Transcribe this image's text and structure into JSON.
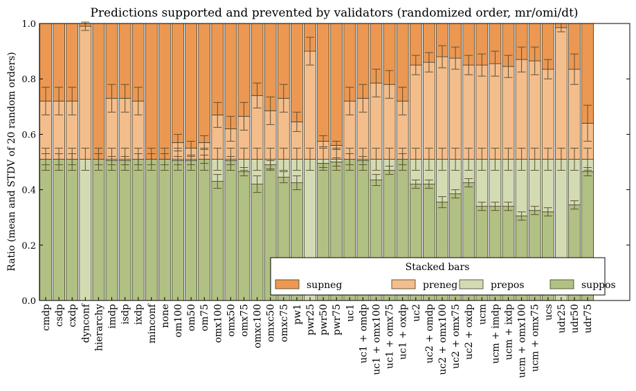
{
  "chart_data": {
    "type": "bar",
    "stacked": true,
    "title": "Predictions supported and prevented by validators (randomized order, mr/omi/dt)",
    "xlabel": "",
    "ylabel": "Ratio (mean and STDV of 20 random orders)",
    "ylim": [
      0.0,
      1.0
    ],
    "yticks": [
      "0.0",
      "0.2",
      "0.4",
      "0.6",
      "0.8",
      "1.0"
    ],
    "grid": false,
    "legend": {
      "title": "Stacked bars",
      "placement": "lower-right",
      "entries": [
        "supneg",
        "preneg",
        "prepos",
        "suppos"
      ]
    },
    "colors": {
      "supneg": "#ec9852",
      "preneg": "#f4bd8c",
      "prepos": "#d3dbb3",
      "suppos": "#b1c083",
      "errorbar": "#5e5030"
    },
    "categories": [
      "cmdp",
      "csdp",
      "cxdp",
      "dynconf",
      "hierarchy",
      "imdp",
      "isdp",
      "ixdp",
      "minconf",
      "none",
      "om100",
      "om50",
      "om75",
      "omx100",
      "omx50",
      "omx75",
      "omxc100",
      "omxc50",
      "omxc75",
      "pw1",
      "pwr25",
      "pwr50",
      "pwr75",
      "uc1",
      "uc1 + omdp",
      "uc1 + omx100",
      "uc1 + omx75",
      "uc1 + oxdp",
      "uc2",
      "uc2 + omdp",
      "uc2 + omx100",
      "uc2 + omx75",
      "uc2 + oxdp",
      "ucm",
      "ucm + imdp",
      "ucm + ixdp",
      "ucm + omx100",
      "ucm + omx75",
      "ucs",
      "udr25",
      "udr50",
      "udr75"
    ],
    "series": [
      {
        "name": "suppos",
        "values": [
          0.51,
          0.51,
          0.51,
          0,
          0.51,
          0.505,
          0.505,
          0.51,
          0.51,
          0.51,
          0.505,
          0.505,
          0.51,
          0.43,
          0.505,
          0.465,
          0.42,
          0.49,
          0.445,
          0.425,
          0,
          0.495,
          0.5,
          0.51,
          0.505,
          0.435,
          0.47,
          0.51,
          0.42,
          0.42,
          0.355,
          0.385,
          0.425,
          0.34,
          0.34,
          0.34,
          0.305,
          0.325,
          0.32,
          0,
          0.345,
          0.465
        ]
      },
      {
        "name": "prepos",
        "values": [
          0,
          0,
          0,
          0.51,
          0,
          0.005,
          0.005,
          0,
          0,
          0,
          0.005,
          0.005,
          0,
          0.08,
          0.005,
          0.045,
          0.09,
          0.02,
          0.065,
          0.085,
          0.51,
          0.015,
          0.01,
          0,
          0.005,
          0.075,
          0.04,
          0,
          0.09,
          0.09,
          0.155,
          0.125,
          0.085,
          0.17,
          0.17,
          0.17,
          0.205,
          0.185,
          0.19,
          0.51,
          0.165,
          0.045
        ]
      },
      {
        "name": "preneg",
        "values": [
          0.21,
          0.21,
          0.21,
          0.48,
          0,
          0.22,
          0.22,
          0.21,
          0,
          0,
          0.06,
          0.04,
          0.06,
          0.16,
          0.11,
          0.155,
          0.23,
          0.175,
          0.22,
          0.135,
          0.39,
          0.065,
          0.05,
          0.21,
          0.22,
          0.275,
          0.27,
          0.21,
          0.34,
          0.35,
          0.37,
          0.365,
          0.34,
          0.34,
          0.345,
          0.335,
          0.36,
          0.355,
          0.325,
          0.475,
          0.325,
          0.13
        ]
      },
      {
        "name": "supneg",
        "values": [
          0.28,
          0.28,
          0.28,
          0.01,
          0.49,
          0.27,
          0.27,
          0.28,
          0.49,
          0.49,
          0.43,
          0.45,
          0.43,
          0.33,
          0.38,
          0.335,
          0.26,
          0.315,
          0.27,
          0.355,
          0.1,
          0.425,
          0.44,
          0.28,
          0.27,
          0.215,
          0.22,
          0.28,
          0.15,
          0.14,
          0.12,
          0.125,
          0.15,
          0.15,
          0.145,
          0.155,
          0.13,
          0.135,
          0.165,
          0.015,
          0.165,
          0.36
        ]
      }
    ],
    "error_bars": {
      "suppos_top": {
        "mean": [
          0.51,
          0.51,
          0.51,
          0,
          0.51,
          0.505,
          0.505,
          0.51,
          0.51,
          0.51,
          0.505,
          0.505,
          0.51,
          0.43,
          0.505,
          0.465,
          0.42,
          0.49,
          0.445,
          0.425,
          0,
          0.495,
          0.5,
          0.51,
          0.505,
          0.435,
          0.47,
          0.51,
          0.42,
          0.42,
          0.355,
          0.385,
          0.425,
          0.34,
          0.34,
          0.34,
          0.305,
          0.325,
          0.32,
          0,
          0.345,
          0.465
        ],
        "std": [
          0.02,
          0.02,
          0.02,
          0,
          0.02,
          0.015,
          0.015,
          0.02,
          0.02,
          0.02,
          0.015,
          0.015,
          0.015,
          0.025,
          0.015,
          0.015,
          0.03,
          0.015,
          0.02,
          0.025,
          0,
          0.015,
          0.015,
          0.02,
          0.015,
          0.02,
          0.015,
          0.02,
          0.015,
          0.015,
          0.02,
          0.015,
          0.015,
          0.015,
          0.015,
          0.015,
          0.015,
          0.015,
          0.015,
          0,
          0.015,
          0.015
        ]
      },
      "positive_top": {
        "mean": [
          0.51,
          0.51,
          0.51,
          0.51,
          0.51,
          0.51,
          0.51,
          0.51,
          0.51,
          0.51,
          0.51,
          0.51,
          0.51,
          0.51,
          0.51,
          0.51,
          0.51,
          0.51,
          0.51,
          0.51,
          0.51,
          0.51,
          0.51,
          0.51,
          0.51,
          0.51,
          0.51,
          0.51,
          0.51,
          0.51,
          0.51,
          0.51,
          0.51,
          0.51,
          0.51,
          0.51,
          0.51,
          0.51,
          0.51,
          0.51,
          0.51,
          0.51
        ],
        "std": [
          0.04,
          0.04,
          0.04,
          0.04,
          0.04,
          0.04,
          0.04,
          0.04,
          0.04,
          0.04,
          0.04,
          0.04,
          0.04,
          0.04,
          0.04,
          0.04,
          0.04,
          0.04,
          0.04,
          0.04,
          0.04,
          0.04,
          0.04,
          0.04,
          0.04,
          0.04,
          0.04,
          0.04,
          0.04,
          0.04,
          0.04,
          0.04,
          0.04,
          0.04,
          0.04,
          0.04,
          0.04,
          0.04,
          0.04,
          0.04,
          0.04,
          0.04
        ]
      },
      "preneg_top": {
        "mean": [
          0.72,
          0.72,
          0.72,
          0.99,
          0,
          0.73,
          0.73,
          0.72,
          0,
          0,
          0.57,
          0.55,
          0.57,
          0.67,
          0.62,
          0.665,
          0.74,
          0.685,
          0.73,
          0.645,
          0.9,
          0.575,
          0.56,
          0.72,
          0.73,
          0.785,
          0.78,
          0.72,
          0.85,
          0.86,
          0.88,
          0.875,
          0.85,
          0.85,
          0.855,
          0.845,
          0.87,
          0.865,
          0.835,
          0.985,
          0.835,
          0.64
        ]
      }
    },
    "preneg_top_std": [
      0.05,
      0.05,
      0.05,
      0.015,
      0,
      0.05,
      0.05,
      0.05,
      0,
      0,
      0.03,
      0.025,
      0.025,
      0.045,
      0.045,
      0.05,
      0.045,
      0.05,
      0.05,
      0.035,
      0.05,
      0.02,
      0.015,
      0.05,
      0.05,
      0.05,
      0.05,
      0.05,
      0.035,
      0.035,
      0.04,
      0.04,
      0.035,
      0.04,
      0.045,
      0.04,
      0.045,
      0.05,
      0.035,
      0.015,
      0.055,
      0.065
    ]
  }
}
